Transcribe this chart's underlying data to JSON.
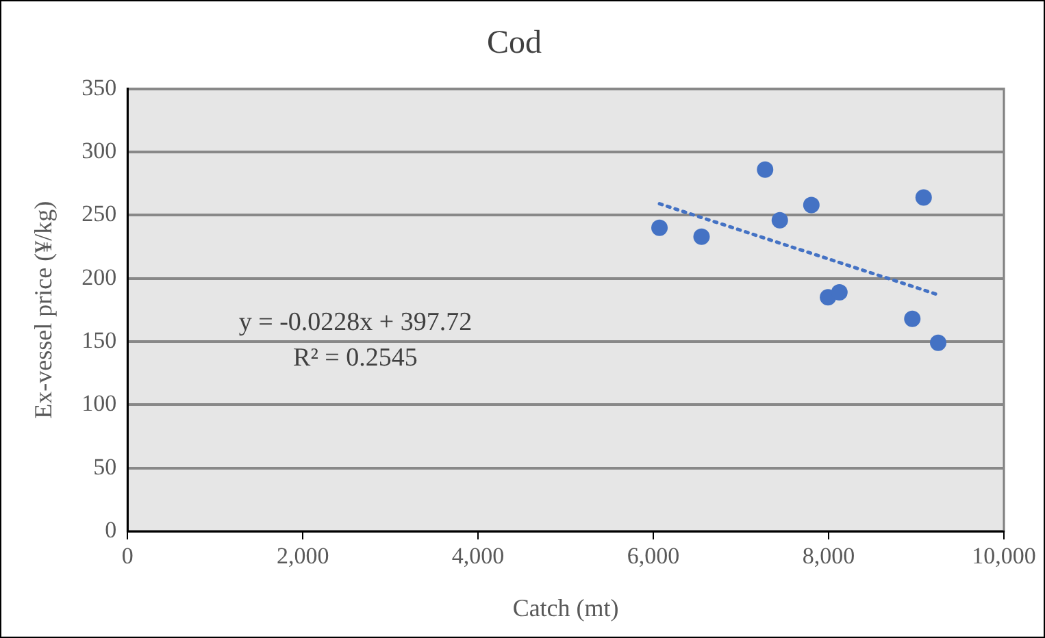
{
  "chart_data": {
    "type": "scatter",
    "title": "Cod",
    "xlabel": "Catch (mt)",
    "ylabel": "Ex-vessel price (¥/kg)",
    "xlim": [
      0,
      10000
    ],
    "xticks": [
      {
        "value": 0,
        "label": "0"
      },
      {
        "value": 2000,
        "label": "2,000"
      },
      {
        "value": 4000,
        "label": "4,000"
      },
      {
        "value": 6000,
        "label": "6,000"
      },
      {
        "value": 8000,
        "label": "8,000"
      },
      {
        "value": 10000,
        "label": "10,000"
      }
    ],
    "ylim": [
      0,
      350
    ],
    "yticks": [
      0,
      50,
      100,
      150,
      200,
      250,
      300,
      350
    ],
    "grid": "y",
    "legend": false,
    "marker": "circle",
    "series": [
      {
        "color": "#4472c4",
        "x": [
          6070,
          6550,
          7275,
          7443,
          7803,
          9084,
          7993,
          8123,
          8955,
          9250
        ],
        "values": [
          240,
          233,
          286,
          246,
          258,
          264,
          185,
          189,
          168,
          149
        ]
      },
      {
        "type": "line",
        "line_style": "dotted",
        "marker": "none",
        "color": "#4472c4",
        "x": [
          6070,
          9250
        ],
        "values": [
          259,
          187
        ]
      }
    ],
    "annotations": [
      "y = -0.0228x + 397.72",
      "R² = 0.2545"
    ]
  }
}
